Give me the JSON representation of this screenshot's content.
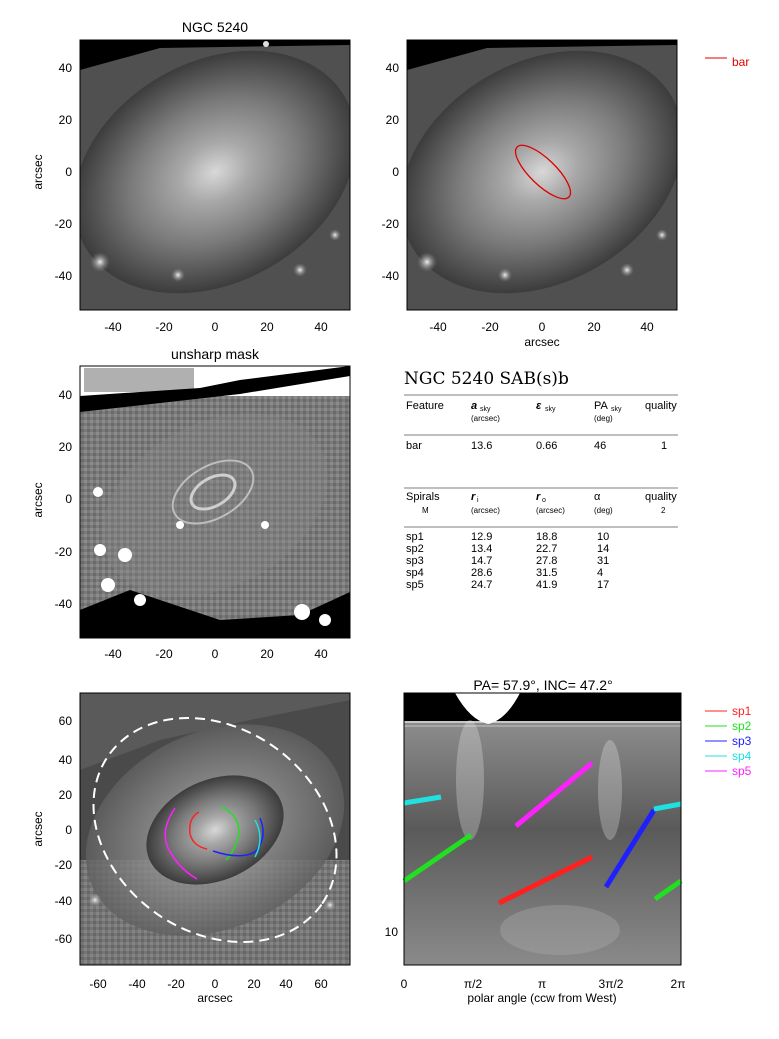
{
  "panels": {
    "p1": {
      "title": "NGC 5240",
      "ylabel": "arcsec",
      "xticks": [
        "-40",
        "-20",
        "0",
        "20",
        "40"
      ],
      "yticks": [
        "40",
        "20",
        "0",
        "-20",
        "-40"
      ]
    },
    "p2": {
      "xlabel": "arcsec",
      "legend": "bar",
      "legend_color": "#e00000",
      "xticks": [
        "-40",
        "-20",
        "0",
        "20",
        "40"
      ],
      "yticks": [
        "40",
        "20",
        "0",
        "-20",
        "-40"
      ]
    },
    "p3": {
      "title": "unsharp mask",
      "ylabel": "arcsec",
      "xticks": [
        "-40",
        "-20",
        "0",
        "20",
        "40"
      ],
      "yticks": [
        "40",
        "20",
        "0",
        "-20",
        "-40"
      ]
    },
    "p5": {
      "xlabel": "arcsec",
      "ylabel": "arcsec",
      "xticks": [
        "-60",
        "-40",
        "-20",
        "0",
        "20",
        "40",
        "60"
      ],
      "yticks": [
        "60",
        "40",
        "20",
        "0",
        "-20",
        "-40",
        "-60"
      ]
    },
    "p6": {
      "title": "PA= 57.9°, INC= 47.2°",
      "xlabel": "polar angle (ccw from West)",
      "xticks": [
        "0",
        "π/2",
        "π",
        "3π/2",
        "2π"
      ],
      "ytick": "10"
    }
  },
  "table": {
    "title": "NGC 5240  SAB(s)b",
    "bar_header": {
      "c1": "Feature",
      "c2": "a",
      "c2sub": "sky",
      "c2unit": "(arcsec)",
      "c3": "ε",
      "c3sub": "sky",
      "c4": "PA",
      "c4sub": "sky",
      "c4unit": "(deg)",
      "c5": "quality"
    },
    "bar_row": {
      "name": "bar",
      "a": "13.6",
      "eps": "0.66",
      "pa": "46",
      "q": "1"
    },
    "spiral_header": {
      "c1": "Spirals",
      "c1b": "M",
      "c2": "r",
      "c2sub": "i",
      "c2unit": "(arcsec)",
      "c3": "r",
      "c3sub": "o",
      "c3unit": "(arcsec)",
      "c4": "α",
      "c4unit": "(deg)",
      "c5": "quality",
      "c5b": "2"
    },
    "spirals": [
      {
        "name": "sp1",
        "ri": "12.9",
        "ro": "18.8",
        "alpha": "10"
      },
      {
        "name": "sp2",
        "ri": "13.4",
        "ro": "22.7",
        "alpha": "14"
      },
      {
        "name": "sp3",
        "ri": "14.7",
        "ro": "27.8",
        "alpha": "31"
      },
      {
        "name": "sp4",
        "ri": "28.6",
        "ro": "31.5",
        "alpha": "4"
      },
      {
        "name": "sp5",
        "ri": "24.7",
        "ro": "41.9",
        "alpha": "17"
      }
    ]
  },
  "legend": [
    {
      "name": "sp1",
      "color": "#ff2020"
    },
    {
      "name": "sp2",
      "color": "#20e020"
    },
    {
      "name": "sp3",
      "color": "#2020ff"
    },
    {
      "name": "sp4",
      "color": "#20e0e0"
    },
    {
      "name": "sp5",
      "color": "#ff20ff"
    }
  ]
}
